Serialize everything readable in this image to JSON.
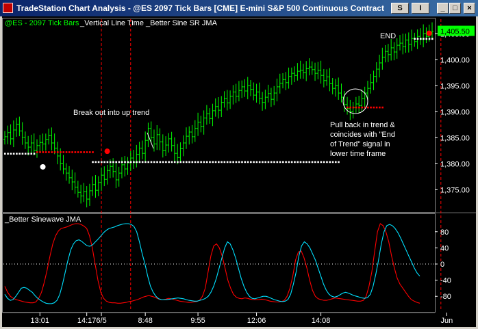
{
  "window": {
    "title": "TradeStation Chart Analysis - @ES  2097 Tick Bars [CME] E-mini S&P 500 Continuous Contract [Ju...",
    "buttons": {
      "s": "S",
      "i": "I",
      "minimize": "_",
      "maximize": "□",
      "close": "×"
    }
  },
  "chart_data": [
    {
      "type": "bar",
      "title": "@ES - 2097 Tick Bars",
      "indicator_labels": [
        "_Vertical Line Time",
        "_Better Sine SR JMA"
      ],
      "y_ticks": [
        "1,375.00",
        "1,380.00",
        "1,385.00",
        "1,390.00",
        "1,395.00",
        "1,400.00",
        "1,405.00"
      ],
      "ylim": [
        1371.5,
        1406.5
      ],
      "last_price": "1,405.50",
      "colors": {
        "bars": "#00ff00",
        "support": "#ffffff",
        "resistance": "#ff0000",
        "vline": "#ff0000",
        "last_price_bg": "#00ff00"
      },
      "closes": [
        1385.2,
        1386.0,
        1384.8,
        1386.5,
        1387.6,
        1386.3,
        1385.1,
        1384.0,
        1383.2,
        1384.0,
        1382.6,
        1383.5,
        1384.1,
        1383.8,
        1384.7,
        1385.4,
        1384.0,
        1383.0,
        1381.5,
        1380.0,
        1379.0,
        1378.2,
        1377.3,
        1376.5,
        1375.5,
        1374.5,
        1373.8,
        1374.6,
        1373.2,
        1374.8,
        1376.0,
        1374.9,
        1376.4,
        1377.8,
        1377.0,
        1378.7,
        1379.5,
        1378.5,
        1376.9,
        1378.2,
        1379.8,
        1379.0,
        1380.2,
        1381.1,
        1380.3,
        1381.8,
        1383.0,
        1382.0,
        1384.5,
        1386.8,
        1385.0,
        1383.8,
        1385.6,
        1384.2,
        1382.5,
        1383.6,
        1384.8,
        1383.5,
        1382.0,
        1381.2,
        1382.9,
        1384.0,
        1385.3,
        1386.1,
        1385.2,
        1386.8,
        1388.0,
        1387.2,
        1388.8,
        1389.6,
        1388.7,
        1390.2,
        1391.0,
        1390.3,
        1391.8,
        1392.5,
        1391.7,
        1393.0,
        1393.8,
        1393.0,
        1394.1,
        1394.8,
        1394.0,
        1395.0,
        1394.3,
        1393.2,
        1393.8,
        1392.6,
        1391.8,
        1392.8,
        1393.5,
        1392.4,
        1393.6,
        1394.8,
        1395.5,
        1396.2,
        1395.6,
        1396.8,
        1397.4,
        1397.0,
        1397.8,
        1398.0,
        1397.5,
        1398.3,
        1398.6,
        1398.1,
        1397.4,
        1398.0,
        1397.0,
        1396.0,
        1396.7,
        1395.4,
        1394.5,
        1395.0,
        1393.6,
        1392.8,
        1391.4,
        1390.6,
        1390.0,
        1390.8,
        1391.5,
        1391.2,
        1392.5,
        1393.6,
        1394.5,
        1395.6,
        1396.8,
        1398.2,
        1399.4,
        1400.5,
        1401.6,
        1401.0,
        1402.3,
        1401.5,
        1402.8,
        1403.2,
        1402.5,
        1403.8,
        1403.0,
        1404.1,
        1403.5,
        1404.5,
        1404.0,
        1405.0,
        1404.5,
        1405.3,
        1405.5
      ],
      "support_levels": [
        {
          "price": 1381.9,
          "from_bar": 0,
          "to_bar": 10
        },
        {
          "price": 1380.3,
          "from_bar": 30,
          "to_bar": 114
        },
        {
          "price": 1404.0,
          "from_bar": 140,
          "to_bar": 146
        }
      ],
      "resistance_levels": [
        {
          "price": 1382.2,
          "from_bar": 11,
          "to_bar": 30
        },
        {
          "price": 1390.8,
          "from_bar": 117,
          "to_bar": 129
        }
      ],
      "markers": [
        {
          "bar": 13,
          "price": 1379.4,
          "color": "#ffffff"
        },
        {
          "bar": 35,
          "price": 1382.4,
          "color": "#ff0000"
        },
        {
          "bar": 145,
          "price": 1405.1,
          "color": "#ff0000"
        }
      ],
      "vertical_lines": [
        33,
        43,
        149
      ],
      "annotations": {
        "breakout": "Break out into up trend",
        "pullback": [
          "Pull back in trend &",
          "coincides with \"End",
          "of Trend\" signal in",
          "lower time frame"
        ],
        "end": "END"
      }
    },
    {
      "type": "line",
      "title": "_Better Sinewave JMA",
      "y_ticks": [
        "-80",
        "-40",
        "0",
        "40",
        "80"
      ],
      "ylim": [
        -105,
        105
      ],
      "series": [
        {
          "color": "#ff0000",
          "values": [
            -55,
            -70,
            -80,
            -85,
            -88,
            -90,
            -92,
            -94,
            -95,
            -96,
            -96,
            -94,
            -85,
            -70,
            -45,
            -15,
            20,
            50,
            70,
            82,
            88,
            90,
            92,
            95,
            98,
            100,
            100,
            98,
            94,
            88,
            70,
            40,
            0,
            -40,
            -70,
            -85,
            -92,
            -95,
            -96,
            -96,
            -97,
            -97,
            -96,
            -95,
            -93,
            -92,
            -90,
            -88,
            -85,
            -82,
            -80,
            -78,
            -80,
            -82,
            -85,
            -88,
            -88,
            -87,
            -85,
            -86,
            -88,
            -90,
            -92,
            -93,
            -94,
            -95,
            -95,
            -94,
            -93,
            -90,
            -80,
            -60,
            -20,
            20,
            45,
            50,
            40,
            20,
            -10,
            -40,
            -60,
            -75,
            -82,
            -85,
            -86,
            -84,
            -85,
            -87,
            -88,
            -88,
            -88,
            -87,
            -88,
            -90,
            -92,
            -93,
            -94,
            -94,
            -93,
            -90,
            -80,
            -60,
            -30,
            10,
            30,
            32,
            15,
            -10,
            -40,
            -65,
            -80,
            -86,
            -88,
            -90,
            -90,
            -88,
            -86,
            -84,
            -85,
            -86,
            -87,
            -88,
            -89,
            -90,
            -91,
            -92,
            -92,
            -90,
            -80,
            -55,
            -20,
            30,
            80,
            100,
            95,
            80,
            55,
            20,
            -10,
            -35,
            -50,
            -60,
            -70,
            -80,
            -88,
            -92,
            -95,
            -97
          ]
        },
        {
          "color": "#00e0ff",
          "values": [
            -75,
            -85,
            -90,
            -88,
            -80,
            -70,
            -60,
            -58,
            -60,
            -65,
            -70,
            -78,
            -85,
            -90,
            -94,
            -97,
            -98,
            -98,
            -96,
            -90,
            -75,
            -50,
            -20,
            10,
            35,
            50,
            58,
            60,
            56,
            50,
            45,
            44,
            48,
            55,
            62,
            70,
            78,
            84,
            88,
            90,
            92,
            95,
            97,
            99,
            100,
            100,
            98,
            93,
            80,
            55,
            25,
            0,
            -30,
            -55,
            -70,
            -80,
            -86,
            -88,
            -88,
            -88,
            -87,
            -86,
            -85,
            -84,
            -85,
            -86,
            -88,
            -90,
            -91,
            -92,
            -92,
            -90,
            -88,
            -85,
            -80,
            -70,
            -55,
            -35,
            -10,
            15,
            40,
            55,
            50,
            35,
            15,
            -10,
            -35,
            -55,
            -70,
            -80,
            -85,
            -86,
            -84,
            -82,
            -80,
            -80,
            -82,
            -85,
            -88,
            -90,
            -92,
            -93,
            -92,
            -88,
            -75,
            -50,
            -20,
            20,
            45,
            55,
            50,
            40,
            25,
            10,
            -10,
            -30,
            -50,
            -65,
            -75,
            -80,
            -82,
            -80,
            -76,
            -72,
            -70,
            -72,
            -75,
            -78,
            -80,
            -82,
            -84,
            -85,
            -83,
            -75,
            -55,
            -25,
            10,
            50,
            80,
            95,
            98,
            95,
            88,
            78,
            65,
            50,
            35,
            20,
            5,
            -10,
            -22,
            -30
          ]
        }
      ]
    }
  ],
  "x_axis": {
    "tick_labels": [
      "13:01",
      "14:17",
      "6/5",
      "8:48",
      "9:55",
      "12:06",
      "14:08",
      "Jun"
    ],
    "tick_bars": [
      12,
      28,
      33,
      48,
      66,
      86,
      108,
      151
    ]
  }
}
